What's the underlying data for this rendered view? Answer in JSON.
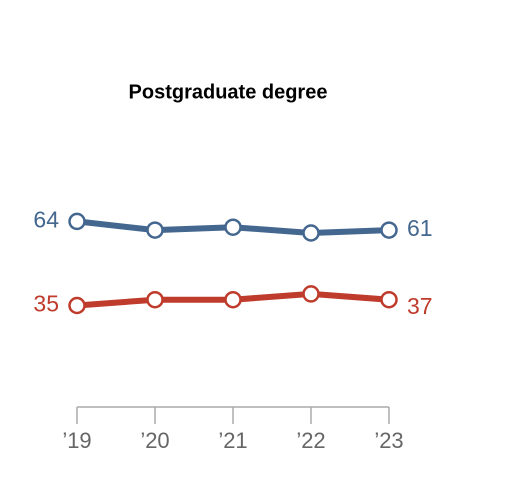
{
  "chart_data": {
    "type": "line",
    "title": "Postgraduate degree",
    "categories": [
      "’19",
      "’20",
      "’21",
      "’22",
      "’23"
    ],
    "series": [
      {
        "color": "#44678f",
        "values": [
          64,
          61,
          62,
          60,
          61
        ]
      },
      {
        "color": "#bf3b2c",
        "values": [
          35,
          37,
          37,
          39,
          37
        ]
      }
    ],
    "ylim": [
      0,
      80
    ],
    "grid": false
  }
}
